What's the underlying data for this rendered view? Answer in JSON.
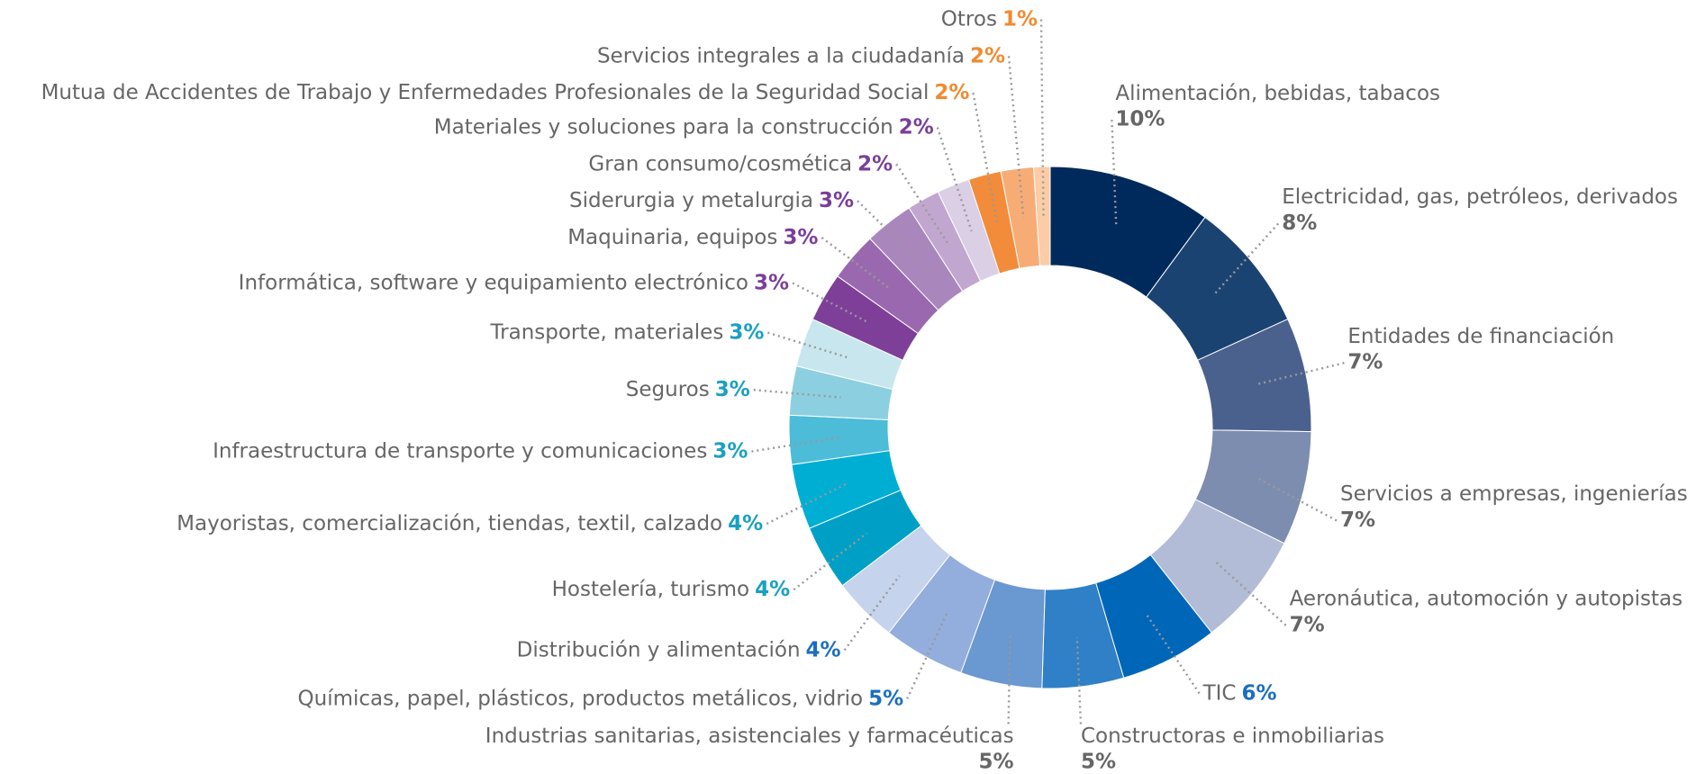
{
  "chart_data": {
    "type": "pie",
    "categories": [
      "Alimentación, bebidas, tabacos",
      "Electricidad, gas, petróleos, derivados",
      "Entidades de financiación",
      "Servicios a empresas, ingenierías",
      "Aeronáutica, automoción y autopistas",
      "TIC",
      "Constructoras e inmobiliarias",
      "Industrias sanitarias, asistenciales y farmacéuticas",
      "Químicas, papel, plásticos, productos metálicos, vidrio",
      "Distribución y alimentación",
      "Hostelería, turismo",
      "Mayoristas, comercialización, tiendas, textil, calzado",
      "Infraestructura de transporte y comunicaciones",
      "Seguros",
      "Transporte, materiales",
      "Informática, software y equipamiento electrónico",
      "Maquinaria, equipos",
      "Siderurgia y metalurgia",
      "Gran consumo/cosmética",
      "Materiales y soluciones para la construcción",
      "Mutua de Accidentes de Trabajo y Enfermedades Profesionales de la Seguridad Social",
      "Servicios integrales a la ciudadanía",
      "Otros"
    ],
    "values": [
      10,
      8,
      7,
      7,
      7,
      6,
      5,
      5,
      5,
      4,
      4,
      4,
      3,
      3,
      3,
      3,
      3,
      3,
      2,
      2,
      2,
      2,
      1
    ],
    "value_labels": [
      "10%",
      "8%",
      "7%",
      "7%",
      "7%",
      "6%",
      "5%",
      "5%",
      "5%",
      "4%",
      "4%",
      "4%",
      "3%",
      "3%",
      "3%",
      "3%",
      "3%",
      "3%",
      "2%",
      "2%",
      "2%",
      "2%",
      "1%"
    ],
    "colors": [
      "#002a5c",
      "#1b4372",
      "#4a618e",
      "#7d8db0",
      "#b2bcd6",
      "#0066b8",
      "#2f80c6",
      "#6a98d0",
      "#93aedc",
      "#c5d3ec",
      "#00a0c6",
      "#00aed4",
      "#4cbcd8",
      "#8ccfe0",
      "#c8e6ee",
      "#7e3f98",
      "#9a68ae",
      "#a986bc",
      "#c1a6cf",
      "#dbcfe6",
      "#f28c3a",
      "#f7ac76",
      "#fbcca6"
    ],
    "value_label_colors": [
      "#0a2b5c",
      "#0a2b5c",
      "#0a2b5c",
      "#0a2b5c",
      "#0a2b5c",
      "#1a6fc0",
      "#1a6fc0",
      "#1a6fc0",
      "#1a6fc0",
      "#1a6fc0",
      "#1aa0c0",
      "#1aa0c0",
      "#1aa0c0",
      "#1aa0c0",
      "#1aa0c0",
      "#7a3e9a",
      "#7a3e9a",
      "#7a3e9a",
      "#7a3e9a",
      "#7a3e9a",
      "#f08a30",
      "#f08a30",
      "#f08a30"
    ]
  }
}
